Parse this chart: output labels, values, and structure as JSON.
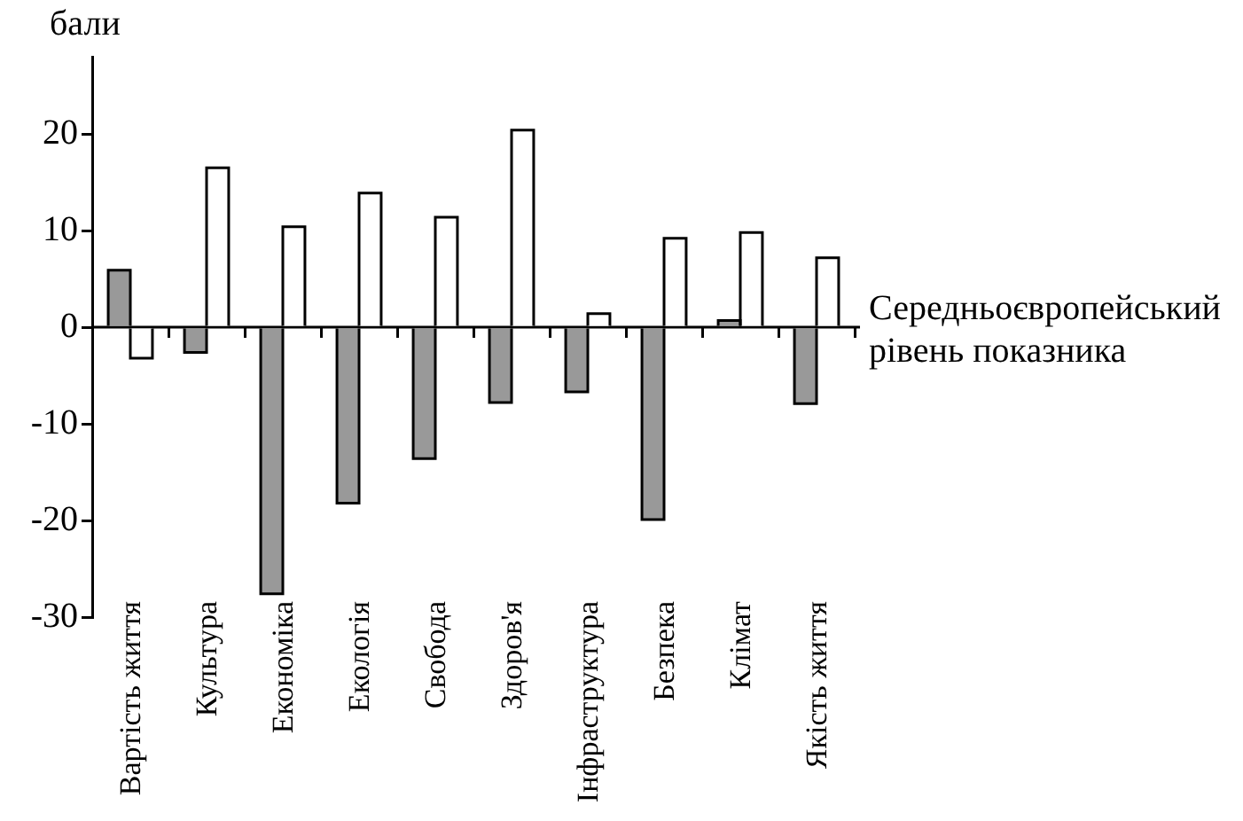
{
  "chart_data": {
    "type": "bar",
    "ylabel": "бали",
    "categories": [
      "Вартість життя",
      "Культура",
      "Економіка",
      "Екологія",
      "Свобода",
      "Здоров'я",
      "Інфраструктура",
      "Безпека",
      "Клімат",
      "Якість життя"
    ],
    "series": [
      {
        "color": "#999999",
        "values": [
          5.9,
          -2.6,
          -27.6,
          -18.2,
          -13.6,
          -7.8,
          -6.7,
          -19.9,
          0.7,
          -7.9
        ]
      },
      {
        "color": "#ffffff",
        "values": [
          -3.2,
          16.5,
          10.4,
          13.9,
          11.4,
          20.4,
          1.4,
          9.2,
          9.8,
          7.2
        ]
      }
    ],
    "ylim": [
      -30,
      28
    ],
    "yticks": [
      -30,
      -20,
      -10,
      0,
      10,
      20
    ],
    "ref_lines": [
      {
        "axis": "y",
        "value": 0,
        "label": "Середньоєвропейський рівень показника"
      }
    ],
    "grid": false,
    "legend": false
  }
}
